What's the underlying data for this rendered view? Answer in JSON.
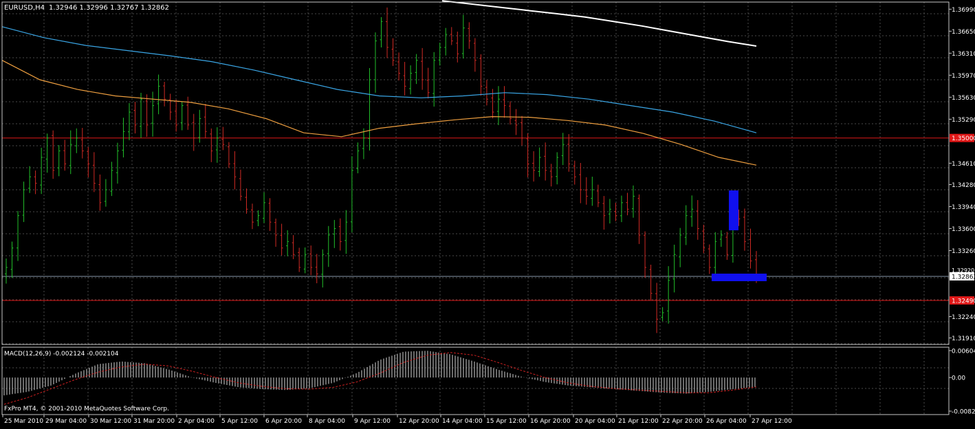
{
  "colors": {
    "background": "#000000",
    "grid": "#4a4a4a",
    "frame": "#c8c8c8",
    "bull_bar": "#22c02a",
    "bear_bar": "#d02a24",
    "ma_slow": "#ffffff",
    "ma_mid": "#3aa6e6",
    "ma_fast": "#f0a040",
    "red_line": "#e01818",
    "price_line": "#8899aa",
    "highlight": "#1010ee",
    "macd_hist": "#d8d8d8",
    "macd_signal": "#cc2020",
    "text": "#ffffff"
  },
  "header": {
    "symbol_tf": "EURUSD,H4",
    "ohlc": "1.32946 1.32996 1.32767 1.32862"
  },
  "macd": {
    "label": "MACD(12,26,9) -0.002124 -0.002104",
    "ticks": [
      "0.00604",
      "0.00",
      "-0.00828"
    ]
  },
  "copyright": "FxPro MT4, © 2001-2010 MetaQuotes Software Corp.",
  "price_axis": {
    "ticks": [
      "1.36990",
      "1.36650",
      "1.36310",
      "1.35970",
      "1.35630",
      "1.35290",
      "1.34610",
      "1.34280",
      "1.33940",
      "1.33600",
      "1.33260",
      "1.32240",
      "1.31910"
    ],
    "partial_labels": [
      "1.35000",
      "1.32920",
      "1.32490"
    ],
    "current_price": "1.32862"
  },
  "time_axis": [
    "25 Mar 2010",
    "29 Mar 04:00",
    "30 Mar 12:00",
    "31 Mar 20:00",
    "2 Apr 04:00",
    "5 Apr 12:00",
    "6 Apr 20:00",
    "8 Apr 04:00",
    "9 Apr 12:00",
    "12 Apr 20:00",
    "14 Apr 04:00",
    "15 Apr 12:00",
    "16 Apr 20:00",
    "20 Apr 04:00",
    "21 Apr 12:00",
    "22 Apr 20:00",
    "26 Apr 04:00",
    "27 Apr 12:00"
  ],
  "chart_data": {
    "type": "ohlc",
    "symbol": "EURUSD",
    "timeframe": "H4",
    "ylim": [
      1.3181,
      1.371
    ],
    "horizontal_lines": [
      1.35,
      1.3249
    ],
    "current_price": 1.32862,
    "closes": [
      1.33,
      1.333,
      1.338,
      1.342,
      1.344,
      1.343,
      1.347,
      1.35,
      1.345,
      1.348,
      1.346,
      1.349,
      1.35,
      1.348,
      1.346,
      1.343,
      1.34,
      1.342,
      1.345,
      1.348,
      1.351,
      1.354,
      1.352,
      1.356,
      1.352,
      1.355,
      1.358,
      1.356,
      1.354,
      1.352,
      1.355,
      1.352,
      1.35,
      1.353,
      1.351,
      1.348,
      1.35,
      1.349,
      1.346,
      1.344,
      1.341,
      1.339,
      1.337,
      1.338,
      1.34,
      1.337,
      1.335,
      1.333,
      1.334,
      1.332,
      1.33,
      1.332,
      1.33,
      1.329,
      1.332,
      1.335,
      1.336,
      1.334,
      1.337,
      1.345,
      1.348,
      1.35,
      1.359,
      1.365,
      1.368,
      1.364,
      1.362,
      1.36,
      1.358,
      1.36,
      1.362,
      1.359,
      1.357,
      1.362,
      1.364,
      1.366,
      1.365,
      1.363,
      1.367,
      1.365,
      1.362,
      1.358,
      1.356,
      1.354,
      1.356,
      1.355,
      1.353,
      1.352,
      1.35,
      1.346,
      1.345,
      1.347,
      1.345,
      1.344,
      1.347,
      1.349,
      1.346,
      1.344,
      1.342,
      1.341,
      1.342,
      1.34,
      1.338,
      1.339,
      1.338,
      1.34,
      1.339,
      1.341,
      1.335,
      1.33,
      1.326,
      1.322,
      1.323,
      1.328,
      1.332,
      1.335,
      1.338,
      1.339,
      1.336,
      1.333,
      1.33,
      1.334,
      1.335,
      1.332,
      1.338,
      1.3375,
      1.334,
      1.331,
      1.3286
    ],
    "ma_slow": [
      1.3712,
      1.3707,
      1.3702,
      1.3697,
      1.3692,
      1.3687,
      1.368,
      1.3673,
      1.3665,
      1.3657,
      1.3649,
      1.3642
    ],
    "ma_mid": [
      1.3672,
      1.3655,
      1.3643,
      1.3635,
      1.3627,
      1.3618,
      1.3605,
      1.359,
      1.3575,
      1.3565,
      1.3562,
      1.3565,
      1.357,
      1.3567,
      1.356,
      1.355,
      1.354,
      1.3526,
      1.3508
    ],
    "ma_fast": [
      1.362,
      1.359,
      1.3575,
      1.3565,
      1.356,
      1.3555,
      1.3545,
      1.353,
      1.3508,
      1.3502,
      1.3515,
      1.3522,
      1.3528,
      1.3533,
      1.3532,
      1.3527,
      1.352,
      1.3507,
      1.349,
      1.347,
      1.3458
    ],
    "macd_hist": [
      -0.004,
      -0.0032,
      -0.0018,
      0.0008,
      0.003,
      0.0036,
      0.0032,
      0.0018,
      0.0,
      -0.0012,
      -0.0022,
      -0.0026,
      -0.0028,
      -0.0024,
      -0.0012,
      0.001,
      0.004,
      0.0058,
      0.006,
      0.0052,
      0.0036,
      0.0018,
      0.0002,
      -0.001,
      -0.0018,
      -0.0022,
      -0.0026,
      -0.003,
      -0.0034,
      -0.0036,
      -0.0032,
      -0.0026,
      -0.0021
    ],
    "macd_signal": [
      -0.006,
      -0.0045,
      -0.0025,
      -0.0005,
      0.0012,
      0.0024,
      0.003,
      0.0026,
      0.0014,
      0.0,
      -0.0012,
      -0.002,
      -0.0025,
      -0.0026,
      -0.0022,
      -0.001,
      0.001,
      0.0034,
      0.005,
      0.0056,
      0.005,
      0.0034,
      0.0016,
      0.0,
      -0.0012,
      -0.002,
      -0.0025,
      -0.0028,
      -0.0031,
      -0.0034,
      -0.0034,
      -0.0028,
      -0.0021
    ],
    "macd_ylim": [
      -0.0083,
      0.0068
    ]
  }
}
